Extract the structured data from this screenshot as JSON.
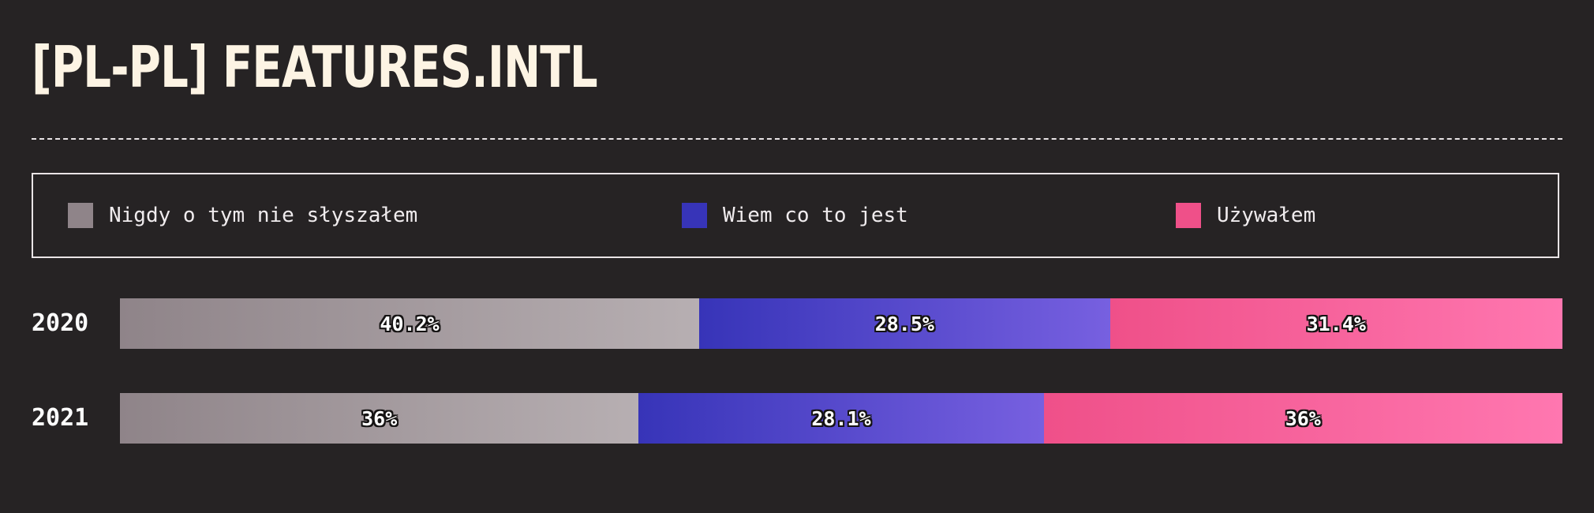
{
  "title": "[PL-PL] FEATURES.INTL",
  "legend": {
    "items": [
      {
        "label": "Nigdy o tym nie słyszałem",
        "color": "#8f8489"
      },
      {
        "label": "Wiem co to jest",
        "color": "#3734b8"
      },
      {
        "label": "Używałem",
        "color": "#ef5089"
      }
    ]
  },
  "colors": {
    "background": "#262324",
    "title": "#fdf4e4",
    "segment_gradients": [
      [
        "#8f8489",
        "#b7afb2"
      ],
      [
        "#3734b8",
        "#7760e0"
      ],
      [
        "#ef5089",
        "#ff77b0"
      ]
    ]
  },
  "chart_data": {
    "type": "bar",
    "orientation": "horizontal",
    "stacked": true,
    "normalized": true,
    "categories": [
      "2020",
      "2021"
    ],
    "series": [
      {
        "name": "Nigdy o tym nie słyszałem",
        "values": [
          40.2,
          36
        ],
        "labels": [
          "40.2%",
          "36%"
        ]
      },
      {
        "name": "Wiem co to jest",
        "values": [
          28.5,
          28.1
        ],
        "labels": [
          "28.5%",
          "28.1%"
        ]
      },
      {
        "name": "Używałem",
        "values": [
          31.4,
          36
        ],
        "labels": [
          "31.4%",
          "36%"
        ]
      }
    ],
    "legend_position": "top",
    "grid": false
  }
}
